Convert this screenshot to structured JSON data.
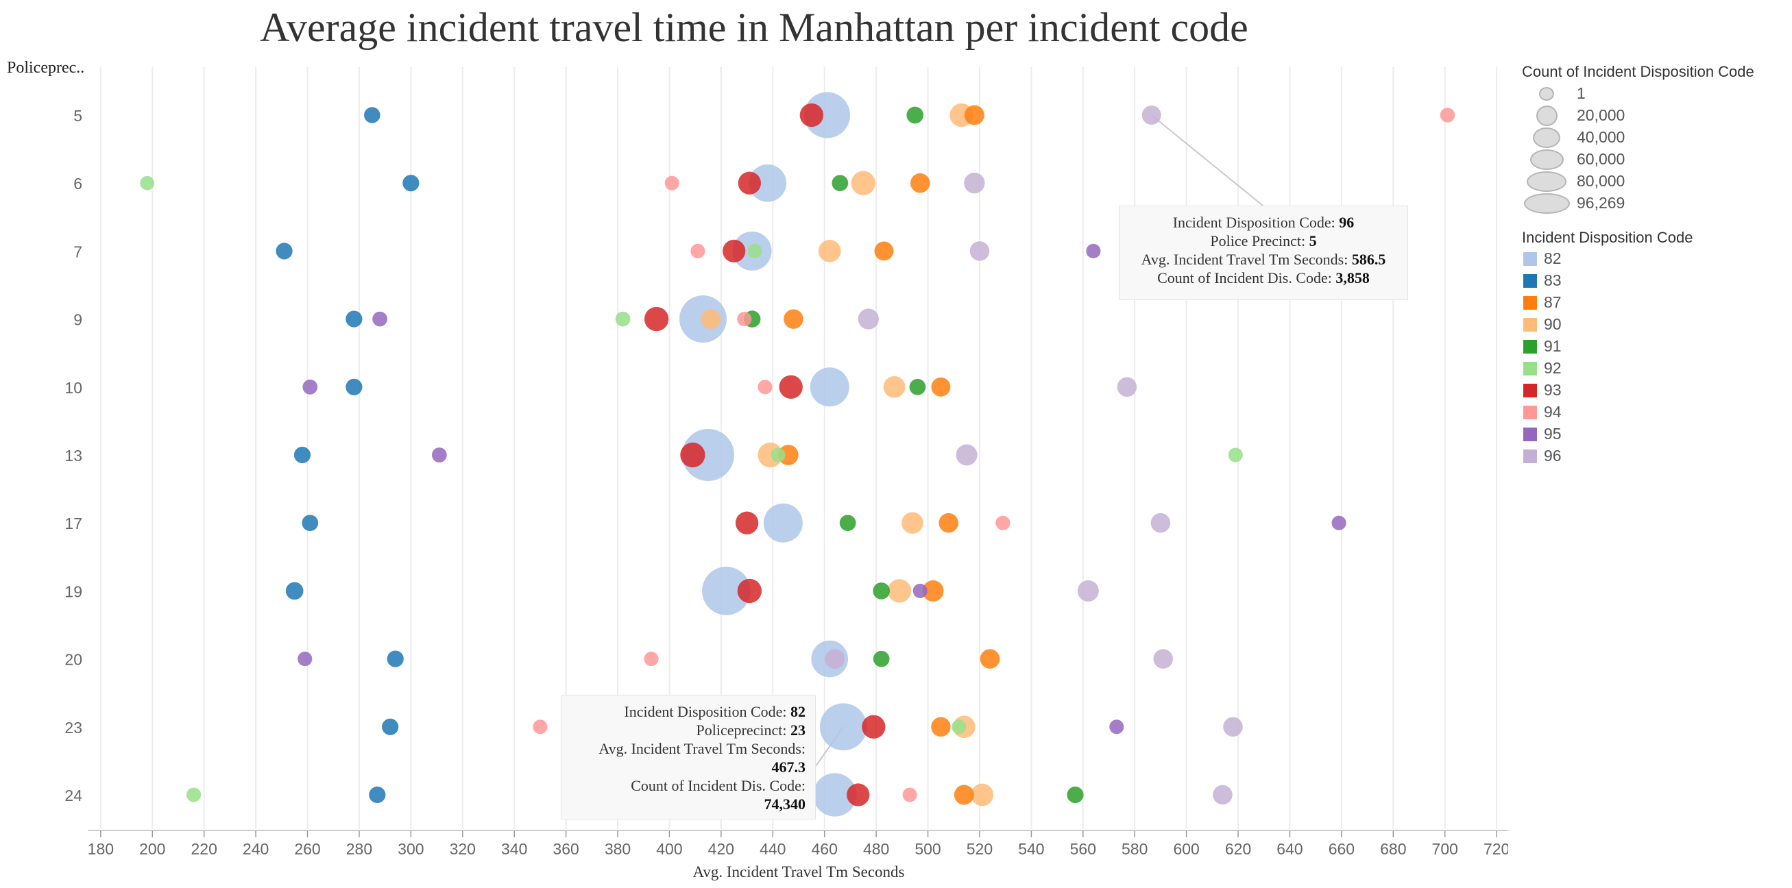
{
  "chart_data": {
    "type": "scatter",
    "title": "Average incident travel time in Manhattan per incident code",
    "xlabel": "Avg. Incident Travel Tm Seconds",
    "row_header": "Policeprec..",
    "xlim": [
      175,
      725
    ],
    "x_ticks": [
      180,
      200,
      220,
      240,
      260,
      280,
      300,
      320,
      340,
      360,
      380,
      400,
      420,
      440,
      460,
      480,
      500,
      520,
      540,
      560,
      580,
      600,
      620,
      640,
      660,
      680,
      700,
      720
    ],
    "categories": [
      "5",
      "6",
      "7",
      "9",
      "10",
      "13",
      "17",
      "19",
      "20",
      "23",
      "24"
    ],
    "grid": "vertical",
    "legend_position": "right",
    "size_legend": {
      "title": "Count of Incident Disposition Code",
      "values": [
        "1",
        "20,000",
        "40,000",
        "60,000",
        "80,000",
        "96,269"
      ]
    },
    "color_legend": {
      "title": "Incident Disposition Code",
      "items": [
        {
          "code": "82",
          "color": "#aec7e8"
        },
        {
          "code": "83",
          "color": "#1f77b4"
        },
        {
          "code": "87",
          "color": "#ff7f0e"
        },
        {
          "code": "90",
          "color": "#ffbb78"
        },
        {
          "code": "91",
          "color": "#2ca02c"
        },
        {
          "code": "92",
          "color": "#98df8a"
        },
        {
          "code": "93",
          "color": "#d62728"
        },
        {
          "code": "94",
          "color": "#ff9896"
        },
        {
          "code": "95",
          "color": "#9467bd"
        },
        {
          "code": "96",
          "color": "#c5b0d5"
        }
      ]
    },
    "points": [
      {
        "precinct": "5",
        "code": "83",
        "x": 285,
        "count": 1500
      },
      {
        "precinct": "5",
        "code": "93",
        "x": 455,
        "count": 9000
      },
      {
        "precinct": "5",
        "code": "82",
        "x": 461,
        "count": 70000
      },
      {
        "precinct": "5",
        "code": "91",
        "x": 495,
        "count": 2000
      },
      {
        "precinct": "5",
        "code": "90",
        "x": 513,
        "count": 9000
      },
      {
        "precinct": "5",
        "code": "87",
        "x": 518,
        "count": 4500
      },
      {
        "precinct": "5",
        "code": "96",
        "x": 586.5,
        "count": 3858
      },
      {
        "precinct": "5",
        "code": "94",
        "x": 701,
        "count": 800
      },
      {
        "precinct": "6",
        "code": "92",
        "x": 198,
        "count": 600
      },
      {
        "precinct": "6",
        "code": "83",
        "x": 300,
        "count": 1800
      },
      {
        "precinct": "6",
        "code": "94",
        "x": 401,
        "count": 700
      },
      {
        "precinct": "6",
        "code": "93",
        "x": 431,
        "count": 8000
      },
      {
        "precinct": "6",
        "code": "82",
        "x": 438,
        "count": 40000
      },
      {
        "precinct": "6",
        "code": "91",
        "x": 466,
        "count": 1600
      },
      {
        "precinct": "6",
        "code": "90",
        "x": 475,
        "count": 10000
      },
      {
        "precinct": "6",
        "code": "87",
        "x": 497,
        "count": 4200
      },
      {
        "precinct": "6",
        "code": "96",
        "x": 518,
        "count": 5500
      },
      {
        "precinct": "7",
        "code": "83",
        "x": 251,
        "count": 1800
      },
      {
        "precinct": "7",
        "code": "94",
        "x": 411,
        "count": 700
      },
      {
        "precinct": "7",
        "code": "93",
        "x": 425,
        "count": 8000
      },
      {
        "precinct": "7",
        "code": "82",
        "x": 432,
        "count": 45000
      },
      {
        "precinct": "7",
        "code": "92",
        "x": 433,
        "count": 700
      },
      {
        "precinct": "7",
        "code": "90",
        "x": 462,
        "count": 7500
      },
      {
        "precinct": "7",
        "code": "87",
        "x": 483,
        "count": 3800
      },
      {
        "precinct": "7",
        "code": "96",
        "x": 520,
        "count": 4200
      },
      {
        "precinct": "7",
        "code": "95",
        "x": 564,
        "count": 700
      },
      {
        "precinct": "9",
        "code": "83",
        "x": 278,
        "count": 1800
      },
      {
        "precinct": "9",
        "code": "95",
        "x": 288,
        "count": 900
      },
      {
        "precinct": "9",
        "code": "92",
        "x": 382,
        "count": 900
      },
      {
        "precinct": "9",
        "code": "93",
        "x": 395,
        "count": 10000
      },
      {
        "precinct": "9",
        "code": "82",
        "x": 413,
        "count": 75000
      },
      {
        "precinct": "9",
        "code": "90",
        "x": 416,
        "count": 4500
      },
      {
        "precinct": "9",
        "code": "94",
        "x": 429,
        "count": 700
      },
      {
        "precinct": "9",
        "code": "91",
        "x": 432,
        "count": 2000
      },
      {
        "precinct": "9",
        "code": "87",
        "x": 448,
        "count": 4200
      },
      {
        "precinct": "9",
        "code": "96",
        "x": 477,
        "count": 5500
      },
      {
        "precinct": "10",
        "code": "95",
        "x": 261,
        "count": 900
      },
      {
        "precinct": "10",
        "code": "83",
        "x": 278,
        "count": 1800
      },
      {
        "precinct": "10",
        "code": "94",
        "x": 437,
        "count": 700
      },
      {
        "precinct": "10",
        "code": "93",
        "x": 447,
        "count": 9000
      },
      {
        "precinct": "10",
        "code": "82",
        "x": 462,
        "count": 45000
      },
      {
        "precinct": "10",
        "code": "90",
        "x": 487,
        "count": 6500
      },
      {
        "precinct": "10",
        "code": "91",
        "x": 496,
        "count": 1600
      },
      {
        "precinct": "10",
        "code": "87",
        "x": 505,
        "count": 3800
      },
      {
        "precinct": "10",
        "code": "96",
        "x": 577,
        "count": 4200
      },
      {
        "precinct": "13",
        "code": "83",
        "x": 258,
        "count": 1800
      },
      {
        "precinct": "13",
        "code": "95",
        "x": 311,
        "count": 900
      },
      {
        "precinct": "13",
        "code": "93",
        "x": 409,
        "count": 11000
      },
      {
        "precinct": "13",
        "code": "82",
        "x": 415,
        "count": 96269
      },
      {
        "precinct": "13",
        "code": "90",
        "x": 439,
        "count": 11000
      },
      {
        "precinct": "13",
        "code": "92",
        "x": 442,
        "count": 700
      },
      {
        "precinct": "13",
        "code": "87",
        "x": 446,
        "count": 5000
      },
      {
        "precinct": "13",
        "code": "96",
        "x": 515,
        "count": 6000
      },
      {
        "precinct": "13",
        "code": "92",
        "x": 619,
        "count": 700
      },
      {
        "precinct": "17",
        "code": "83",
        "x": 261,
        "count": 1600
      },
      {
        "precinct": "17",
        "code": "93",
        "x": 430,
        "count": 8000
      },
      {
        "precinct": "17",
        "code": "82",
        "x": 444,
        "count": 45000
      },
      {
        "precinct": "17",
        "code": "91",
        "x": 469,
        "count": 1600
      },
      {
        "precinct": "17",
        "code": "90",
        "x": 494,
        "count": 6500
      },
      {
        "precinct": "17",
        "code": "87",
        "x": 508,
        "count": 4200
      },
      {
        "precinct": "17",
        "code": "94",
        "x": 529,
        "count": 700
      },
      {
        "precinct": "17",
        "code": "96",
        "x": 590,
        "count": 4200
      },
      {
        "precinct": "17",
        "code": "95",
        "x": 659,
        "count": 700
      },
      {
        "precinct": "19",
        "code": "83",
        "x": 255,
        "count": 2500
      },
      {
        "precinct": "19",
        "code": "82",
        "x": 422,
        "count": 80000
      },
      {
        "precinct": "19",
        "code": "93",
        "x": 431,
        "count": 10000
      },
      {
        "precinct": "19",
        "code": "91",
        "x": 482,
        "count": 2000
      },
      {
        "precinct": "19",
        "code": "90",
        "x": 489,
        "count": 9000
      },
      {
        "precinct": "19",
        "code": "95",
        "x": 497,
        "count": 700
      },
      {
        "precinct": "19",
        "code": "87",
        "x": 502,
        "count": 6000
      },
      {
        "precinct": "19",
        "code": "96",
        "x": 562,
        "count": 6000
      },
      {
        "precinct": "20",
        "code": "95",
        "x": 259,
        "count": 700
      },
      {
        "precinct": "20",
        "code": "83",
        "x": 294,
        "count": 1800
      },
      {
        "precinct": "20",
        "code": "94",
        "x": 393,
        "count": 700
      },
      {
        "precinct": "20",
        "code": "82",
        "x": 462,
        "count": 38000
      },
      {
        "precinct": "20",
        "code": "96",
        "x": 464,
        "count": 4500
      },
      {
        "precinct": "20",
        "code": "91",
        "x": 482,
        "count": 1600
      },
      {
        "precinct": "20",
        "code": "87",
        "x": 524,
        "count": 4200
      },
      {
        "precinct": "20",
        "code": "96",
        "x": 591,
        "count": 4200
      },
      {
        "precinct": "23",
        "code": "83",
        "x": 292,
        "count": 1800
      },
      {
        "precinct": "23",
        "code": "94",
        "x": 350,
        "count": 700
      },
      {
        "precinct": "23",
        "code": "82",
        "x": 467.3,
        "count": 74340
      },
      {
        "precinct": "23",
        "code": "93",
        "x": 479,
        "count": 9000
      },
      {
        "precinct": "23",
        "code": "87",
        "x": 505,
        "count": 4200
      },
      {
        "precinct": "23",
        "code": "92",
        "x": 512,
        "count": 700
      },
      {
        "precinct": "23",
        "code": "90",
        "x": 514,
        "count": 7500
      },
      {
        "precinct": "23",
        "code": "95",
        "x": 573,
        "count": 700
      },
      {
        "precinct": "23",
        "code": "96",
        "x": 618,
        "count": 4200
      },
      {
        "precinct": "24",
        "code": "92",
        "x": 216,
        "count": 700
      },
      {
        "precinct": "24",
        "code": "83",
        "x": 287,
        "count": 1800
      },
      {
        "precinct": "24",
        "code": "82",
        "x": 464,
        "count": 60000
      },
      {
        "precinct": "24",
        "code": "93",
        "x": 473,
        "count": 8000
      },
      {
        "precinct": "24",
        "code": "94",
        "x": 493,
        "count": 700
      },
      {
        "precinct": "24",
        "code": "87",
        "x": 514,
        "count": 4500
      },
      {
        "precinct": "24",
        "code": "90",
        "x": 521,
        "count": 7500
      },
      {
        "precinct": "24",
        "code": "91",
        "x": 557,
        "count": 1800
      },
      {
        "precinct": "24",
        "code": "96",
        "x": 614,
        "count": 4200
      }
    ],
    "tooltips": [
      {
        "target": {
          "precinct": "5",
          "code": "96"
        },
        "code_label": "Incident Disposition Code:",
        "code_value": "96",
        "precinct_label": "Police Precinct:",
        "precinct_value": "5",
        "avg_label": "Avg. Incident Travel Tm Seconds:",
        "avg_value": "586.5",
        "count_label": "Count of Incident Dis. Code:",
        "count_value": "3,858"
      },
      {
        "target": {
          "precinct": "23",
          "code": "82"
        },
        "code_label": "Incident Disposition Code:",
        "code_value": "82",
        "precinct_label": "Policeprecinct:",
        "precinct_value": "23",
        "avg_label": "Avg. Incident Travel Tm Seconds:",
        "avg_value": "467.3",
        "count_label": "Count of Incident Dis. Code:",
        "count_value": "74,340"
      }
    ]
  }
}
